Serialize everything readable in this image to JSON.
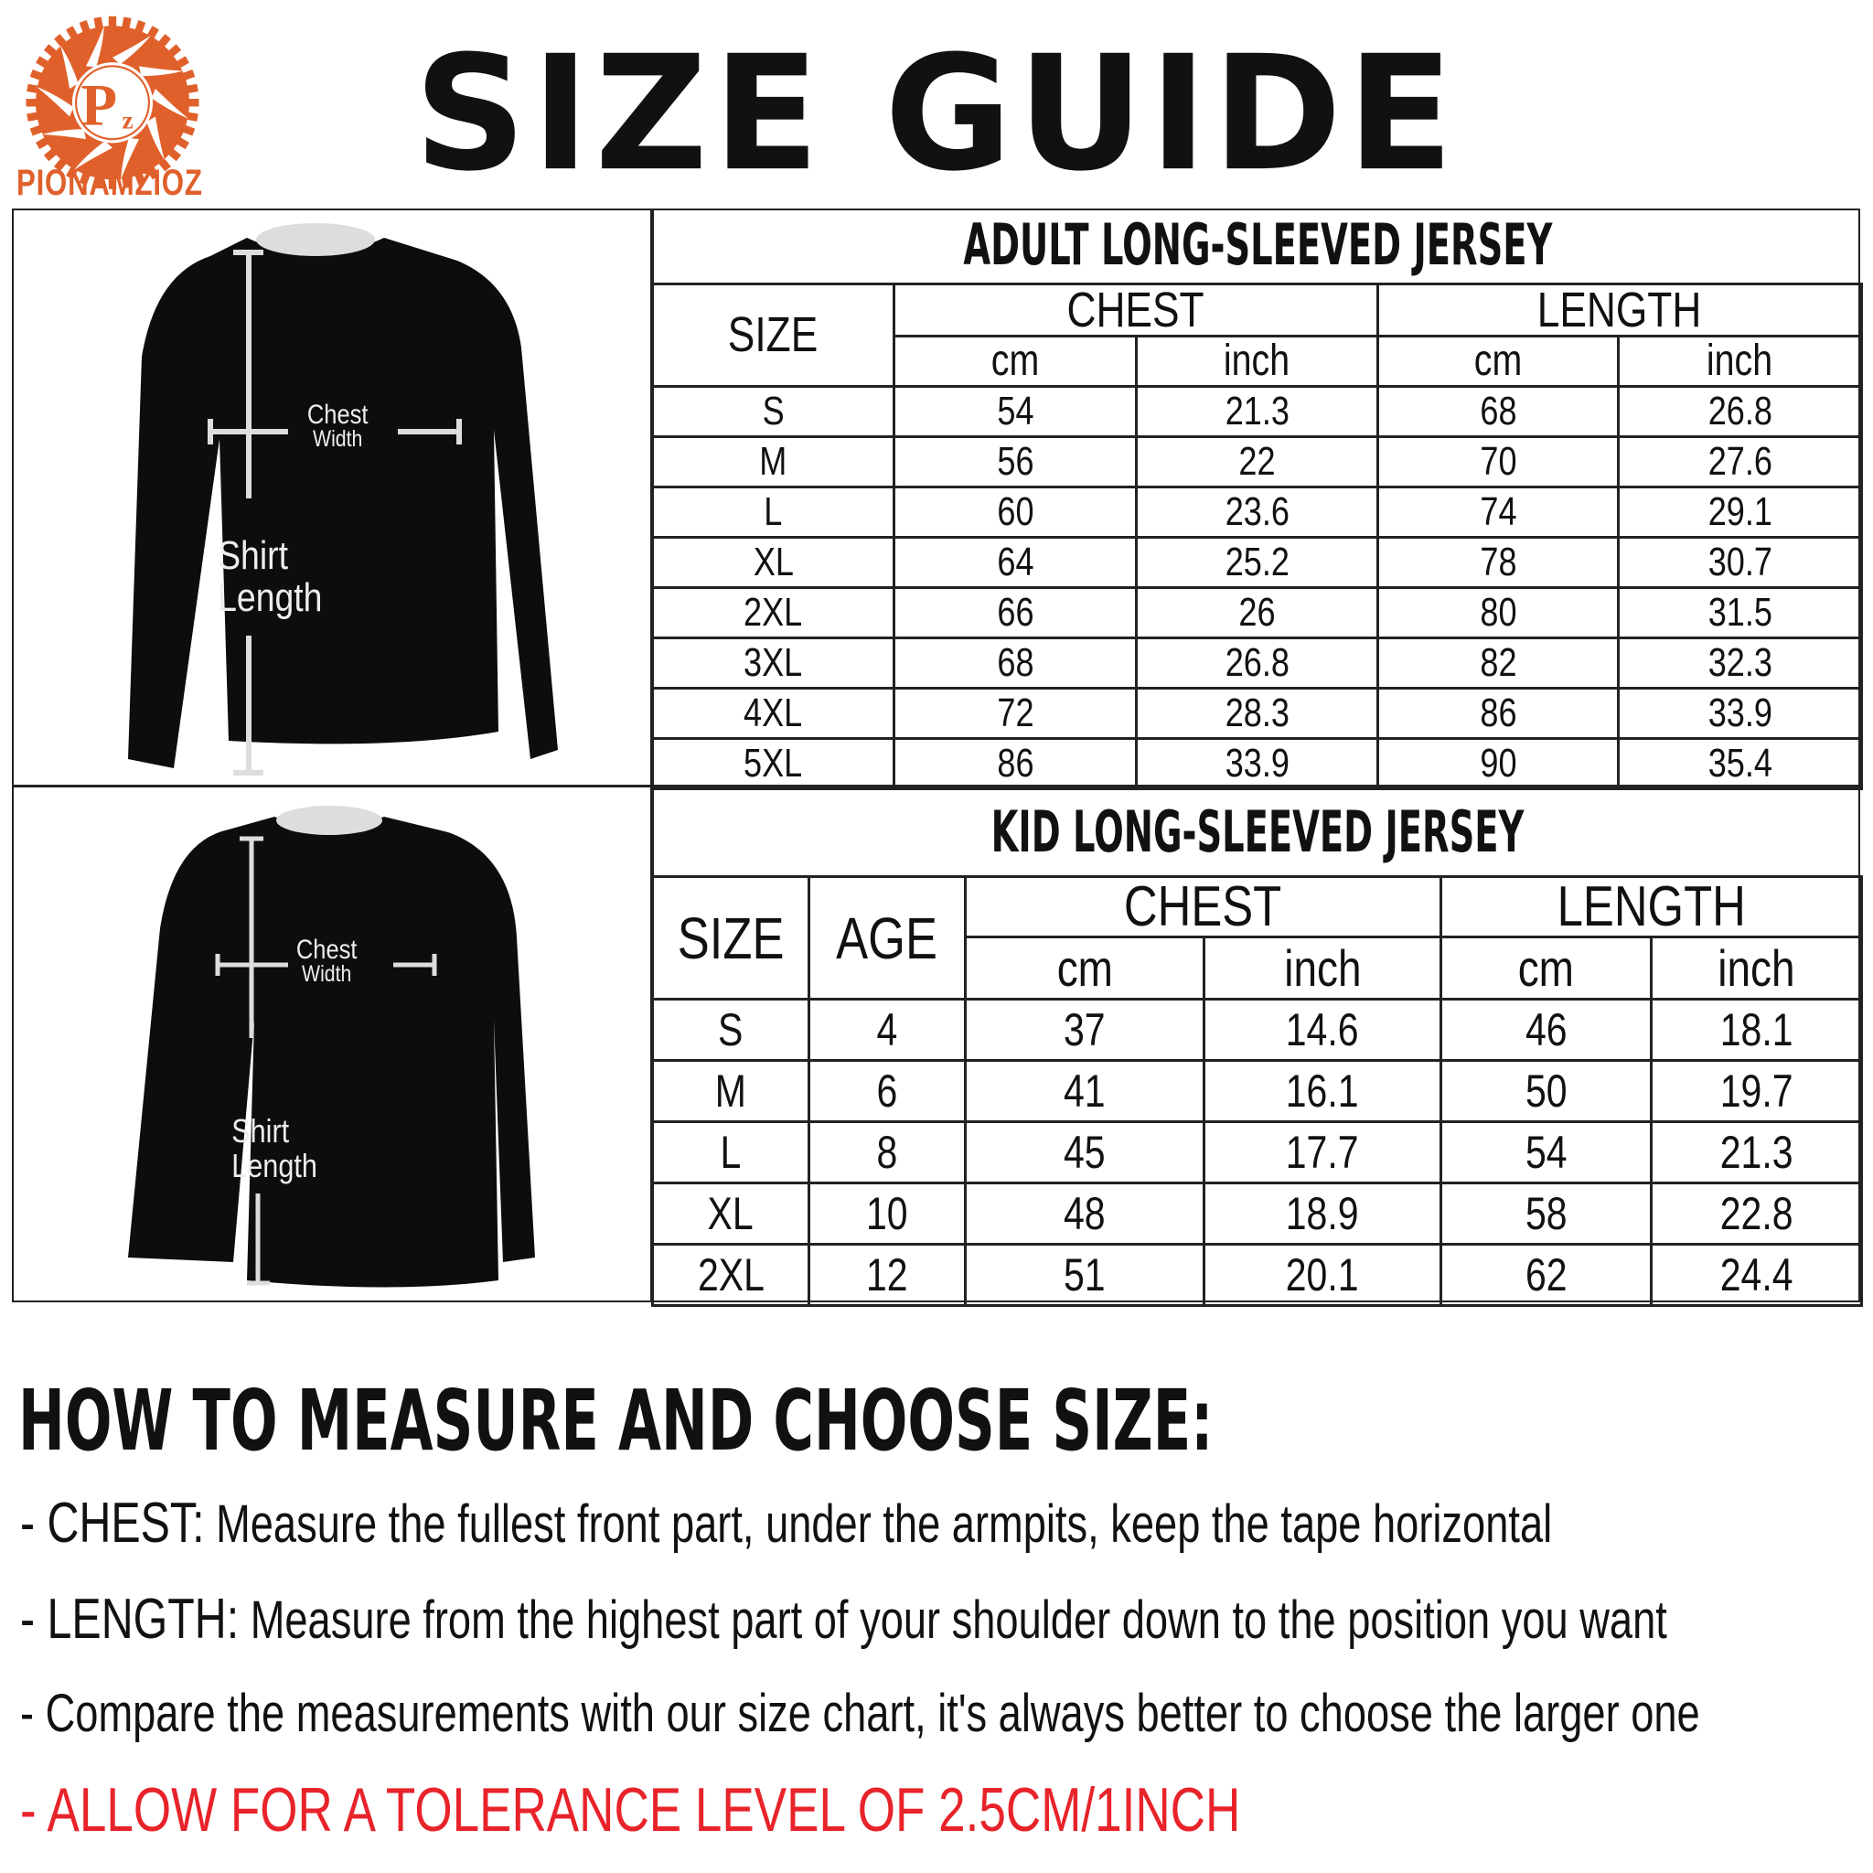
{
  "brand": {
    "name": "PIONAMZIOZ",
    "logo_letters": "Pz",
    "color": "#e0602b"
  },
  "title": "SIZE GUIDE",
  "diagram_labels": {
    "chest": "Chest",
    "width": "Width",
    "shirt": "Shirt",
    "length": "Length"
  },
  "adult": {
    "title": "ADULT LONG-SLEEVED JERSEY",
    "headers": {
      "size": "SIZE",
      "chest": "CHEST",
      "length": "LENGTH",
      "cm": "cm",
      "inch": "inch"
    },
    "rows": [
      [
        "S",
        "54",
        "21.3",
        "68",
        "26.8"
      ],
      [
        "M",
        "56",
        "22",
        "70",
        "27.6"
      ],
      [
        "L",
        "60",
        "23.6",
        "74",
        "29.1"
      ],
      [
        "XL",
        "64",
        "25.2",
        "78",
        "30.7"
      ],
      [
        "2XL",
        "66",
        "26",
        "80",
        "31.5"
      ],
      [
        "3XL",
        "68",
        "26.8",
        "82",
        "32.3"
      ],
      [
        "4XL",
        "72",
        "28.3",
        "86",
        "33.9"
      ],
      [
        "5XL",
        "86",
        "33.9",
        "90",
        "35.4"
      ]
    ]
  },
  "kid": {
    "title": "KID LONG-SLEEVED JERSEY",
    "headers": {
      "size": "SIZE",
      "age": "AGE",
      "chest": "CHEST",
      "length": "LENGTH",
      "cm": "cm",
      "inch": "inch"
    },
    "rows": [
      [
        "S",
        "4",
        "37",
        "14.6",
        "46",
        "18.1"
      ],
      [
        "M",
        "6",
        "41",
        "16.1",
        "50",
        "19.7"
      ],
      [
        "L",
        "8",
        "45",
        "17.7",
        "54",
        "21.3"
      ],
      [
        "XL",
        "10",
        "48",
        "18.9",
        "58",
        "22.8"
      ],
      [
        "2XL",
        "12",
        "51",
        "20.1",
        "62",
        "24.4"
      ]
    ]
  },
  "howto": {
    "heading": "HOW TO MEASURE AND CHOOSE SIZE:",
    "chest_label": "- CHEST:",
    "chest_text": " Measure the fullest front part, under the armpits, keep the tape horizontal",
    "length_label": "- LENGTH:",
    "length_text": " Measure from the highest part of your shoulder down to the position you want",
    "compare": "- Compare the measurements with our size chart, it's always better to choose the larger one",
    "tolerance": "- ALLOW FOR A TOLERANCE LEVEL OF 2.5CM/1INCH",
    "tolerance_color": "#e8232a"
  }
}
